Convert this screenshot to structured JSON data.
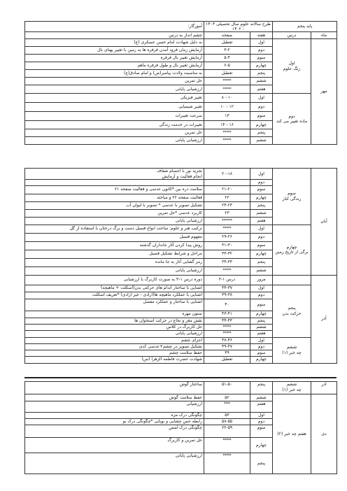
{
  "header": {
    "grade": "پایه پنجم",
    "plan_title": "طرح سالانه علوم سال تحصیلی ۱۴۰۳ - ۱۴۰۲",
    "teacher_label": "آموزگار:"
  },
  "columns": {
    "month": "ماه",
    "lesson": "درس",
    "week": "هفته",
    "page": "صفحه",
    "topic": "چشم انداز به درس"
  },
  "block1": {
    "months": [
      "مهر"
    ],
    "lessons": [
      "اول\nزنگ علوم",
      "دوم\nماده تغییر می کند"
    ],
    "rows": [
      {
        "week": "اول",
        "page": "تعطیل",
        "topic": "به دلیل شهادت امام حسن عسکری (ع)"
      },
      {
        "week": "دوم",
        "page": "۳-۲",
        "topic": "آزمایش زمان فرود آمدن فرفره ها به زمین با تغییر پهنای بال"
      },
      {
        "week": "سوم",
        "page": "۵-۴",
        "topic": "آزمایش تغییر بال فرفره"
      },
      {
        "week": "چهارم",
        "page": "۶-۵",
        "topic": "آزمایش تغییر بال و طول فرفره ماهم"
      },
      {
        "week": "پنجم",
        "page": "تعطیل",
        "topic": "به مناسبت ولادت پیامبر(ص) و امام صادق(ع)"
      },
      {
        "week": "ششم",
        "page": "****",
        "topic": "حل تمرین"
      },
      {
        "week": "هفتم",
        "page": "****",
        "topic": "ارزشیابی پایانی"
      },
      {
        "week": "اول",
        "page": "۱۰ - ۸",
        "topic": "تغییر فیزیکی"
      },
      {
        "week": "دوم",
        "page": "۱۲ - ۱۰",
        "topic": "تغییر شیمیایی"
      },
      {
        "week": "سوم",
        "page": "۱۳",
        "topic": "سرعت تغییرات"
      },
      {
        "week": "چهارم",
        "page": "۱۶ - ۱۴",
        "topic": "تغییرات در خدمت زندگی"
      },
      {
        "week": "پنجم",
        "page": "****",
        "topic": "حل تمرین"
      },
      {
        "week": "ششم",
        "page": "****",
        "topic": "ارزشیابی پایانی"
      }
    ]
  },
  "block2": {
    "months": [
      "آبان",
      "آذر"
    ],
    "lessons": [
      "سوم\nزندگی کنار",
      "چهارم\nبرگی از تاریخ زمین",
      "پنجم\nحرکت بدن",
      "ششم\nچه خبر (۱)"
    ],
    "rows": [
      {
        "week": "اول",
        "page": "۲۰-۱۸",
        "topic": "تجزیه نور با اجسام شفاف\nانجام فعالیت و آزمایش"
      },
      {
        "week": "دوم",
        "page": "",
        "topic": ""
      },
      {
        "week": "سوم",
        "page": "۲۱-۲۰",
        "topic": "سلامت دره بین *کانون عدسی و فعالیت صفحه ۲۱"
      },
      {
        "week": "چهارم",
        "page": "۲۲",
        "topic": "فعالیت صفحه ۲۲ و مباحثه"
      },
      {
        "week": "پنجم",
        "page": "۲۴-۲۳",
        "topic": "تشکیل تصویر با عدسی * تصویر با لیوان آب"
      },
      {
        "week": "ششم",
        "page": "۲۳",
        "topic": "کاربرد عدسی *حل تمرین"
      },
      {
        "week": "هفتم",
        "page": "*****",
        "topic": "ارزشیابی پایانی"
      },
      {
        "week": "اول",
        "page": "****",
        "topic": "ترکیب هنر و علوم: ساخت انواع فسیل دست و برگ درختان با استفاده از گل"
      },
      {
        "week": "دوم",
        "page": "۲۹-۲۶",
        "topic": "مفهوم فسیل"
      },
      {
        "week": "سوم",
        "page": "۳۱-۳۰",
        "topic": "روش پیدا کردن آثار جانداران گذشته"
      },
      {
        "week": "چهارم",
        "page": "۳۳-۳۲",
        "topic": "مراحل و شرایط تشکیل فسیل"
      },
      {
        "week": "پنجم",
        "page": "۳۴-۳۳",
        "topic": "رمز گشایی آثار به جا مانده"
      },
      {
        "week": "ششم",
        "page": "****",
        "topic": "ارزشیابی پایانی"
      },
      {
        "week": "مرور",
        "page": "درس ۱-۳",
        "topic": "دوره درس ۱-۳ به صورت کاربرگ یا ارزشیابی"
      },
      {
        "week": "اول",
        "page": "۳۴-۳۷",
        "topic": "آشنایی با ساختار اندام های حرکتی بدن(اسکلت + ماهیچه)"
      },
      {
        "week": "دوم",
        "page": "۳۹-۳۸",
        "topic": "آشنایی با عملکرد ماهیچه ها(ارادی - غیر ارادی) *تعریف اسکلت"
      },
      {
        "week": "سوم",
        "page": "۴۰",
        "topic": "آشنایی با ساختار و عملکرد مفصل"
      },
      {
        "week": "چهارم",
        "page": "۴۳-۴۱",
        "topic": "ستون مهره"
      },
      {
        "week": "پنجم",
        "page": "۴۴-۴۳",
        "topic": "نقش مغز و نخاع در حرکت استخوان ها"
      },
      {
        "week": "ششم",
        "page": "****",
        "topic": "حل کاربرگ در کلاس"
      },
      {
        "week": "هفتم",
        "page": "****",
        "topic": "ارزشیابی پایانی"
      },
      {
        "week": "اول",
        "page": "۴۷-۴۶",
        "topic": "اجزای چشم"
      },
      {
        "week": "دوم",
        "page": "۴۹-۴۷",
        "topic": "تشکیل تصویر در چشم+عدسی کدی"
      },
      {
        "week": "سوم",
        "page": "۴۹",
        "topic": "حفظ سلامت چشم"
      },
      {
        "week": "چهارم",
        "page": "تعطیل",
        "topic": "شهادت حضرت فاطمه الزهرا (س)"
      }
    ]
  },
  "block3": {
    "months": [
      "آذر",
      "دی"
    ],
    "lessons": [
      "ششم\nچه خبر (۱)",
      "هفتم چه خبر (۲)"
    ],
    "rows": [
      {
        "week": "پنجم",
        "page": "۵۱-۵۰",
        "topic": "ساختار گوش"
      },
      {
        "week": "ششم",
        "page": "۵۲",
        "topic": "حفظ سلامت گوش"
      },
      {
        "week": "هفتم",
        "page": "***",
        "topic": "ارزشیابی"
      },
      {
        "week": "اول",
        "page": "۵۳",
        "topic": "چگونگی درک مزه"
      },
      {
        "week": "دوم",
        "page": "۵۸-۵۵",
        "topic": "رابطه حس چشایی و بویایی *چگونگی درک بو"
      },
      {
        "week": "سوم",
        "page": "۶۲-۵۹",
        "topic": "چگونگی درک لمس"
      },
      {
        "week": "چهارم",
        "page": "****",
        "topic": "حل تمرین و کاربرگ"
      },
      {
        "week": "پنجم",
        "page": "****",
        "topic": "ارزشیابی پایانی"
      }
    ]
  }
}
